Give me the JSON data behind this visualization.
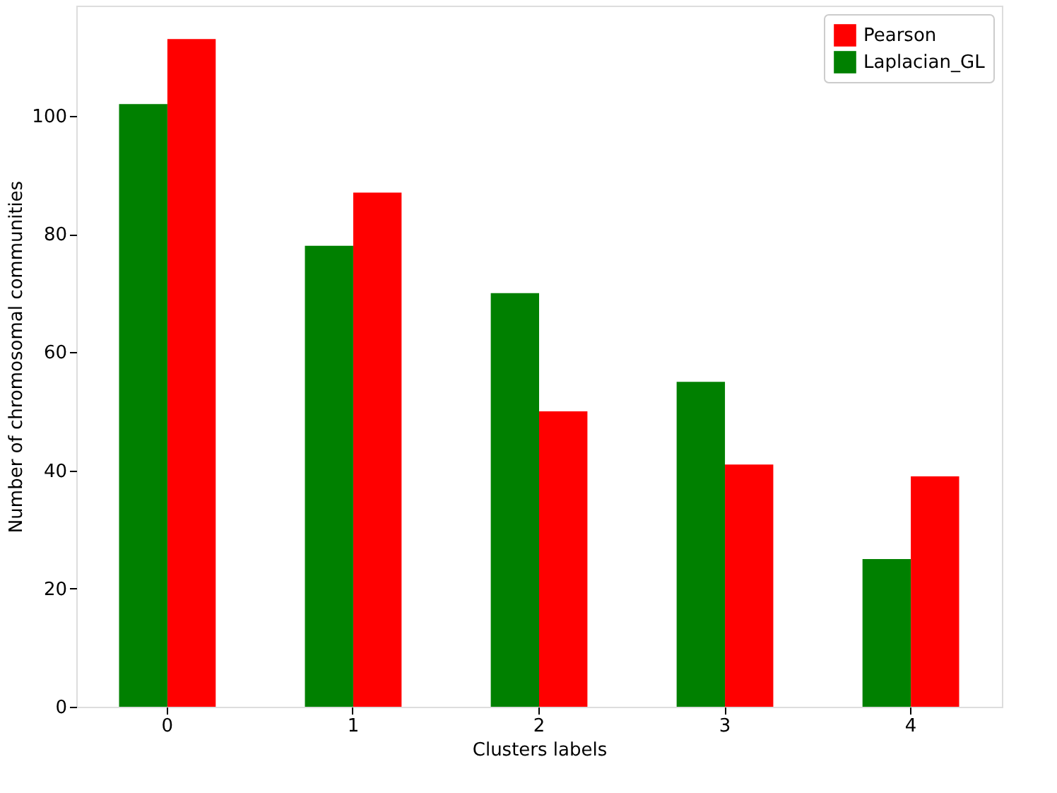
{
  "chart_data": {
    "type": "bar",
    "xlabel": "Clusters labels",
    "ylabel": "Number of chromosomal communities",
    "categories": [
      "0",
      "1",
      "2",
      "3",
      "4"
    ],
    "series": [
      {
        "name": "Pearson",
        "color": "#ff0000",
        "values": [
          113,
          87,
          50,
          41,
          39
        ]
      },
      {
        "name": "Laplacian_GL",
        "color": "#008000",
        "values": [
          102,
          78,
          70,
          55,
          25
        ]
      }
    ],
    "ylim": [
      0,
      118.65
    ],
    "yticks": [
      0,
      20,
      40,
      60,
      80,
      100
    ],
    "grid": false,
    "legend": "top right"
  }
}
